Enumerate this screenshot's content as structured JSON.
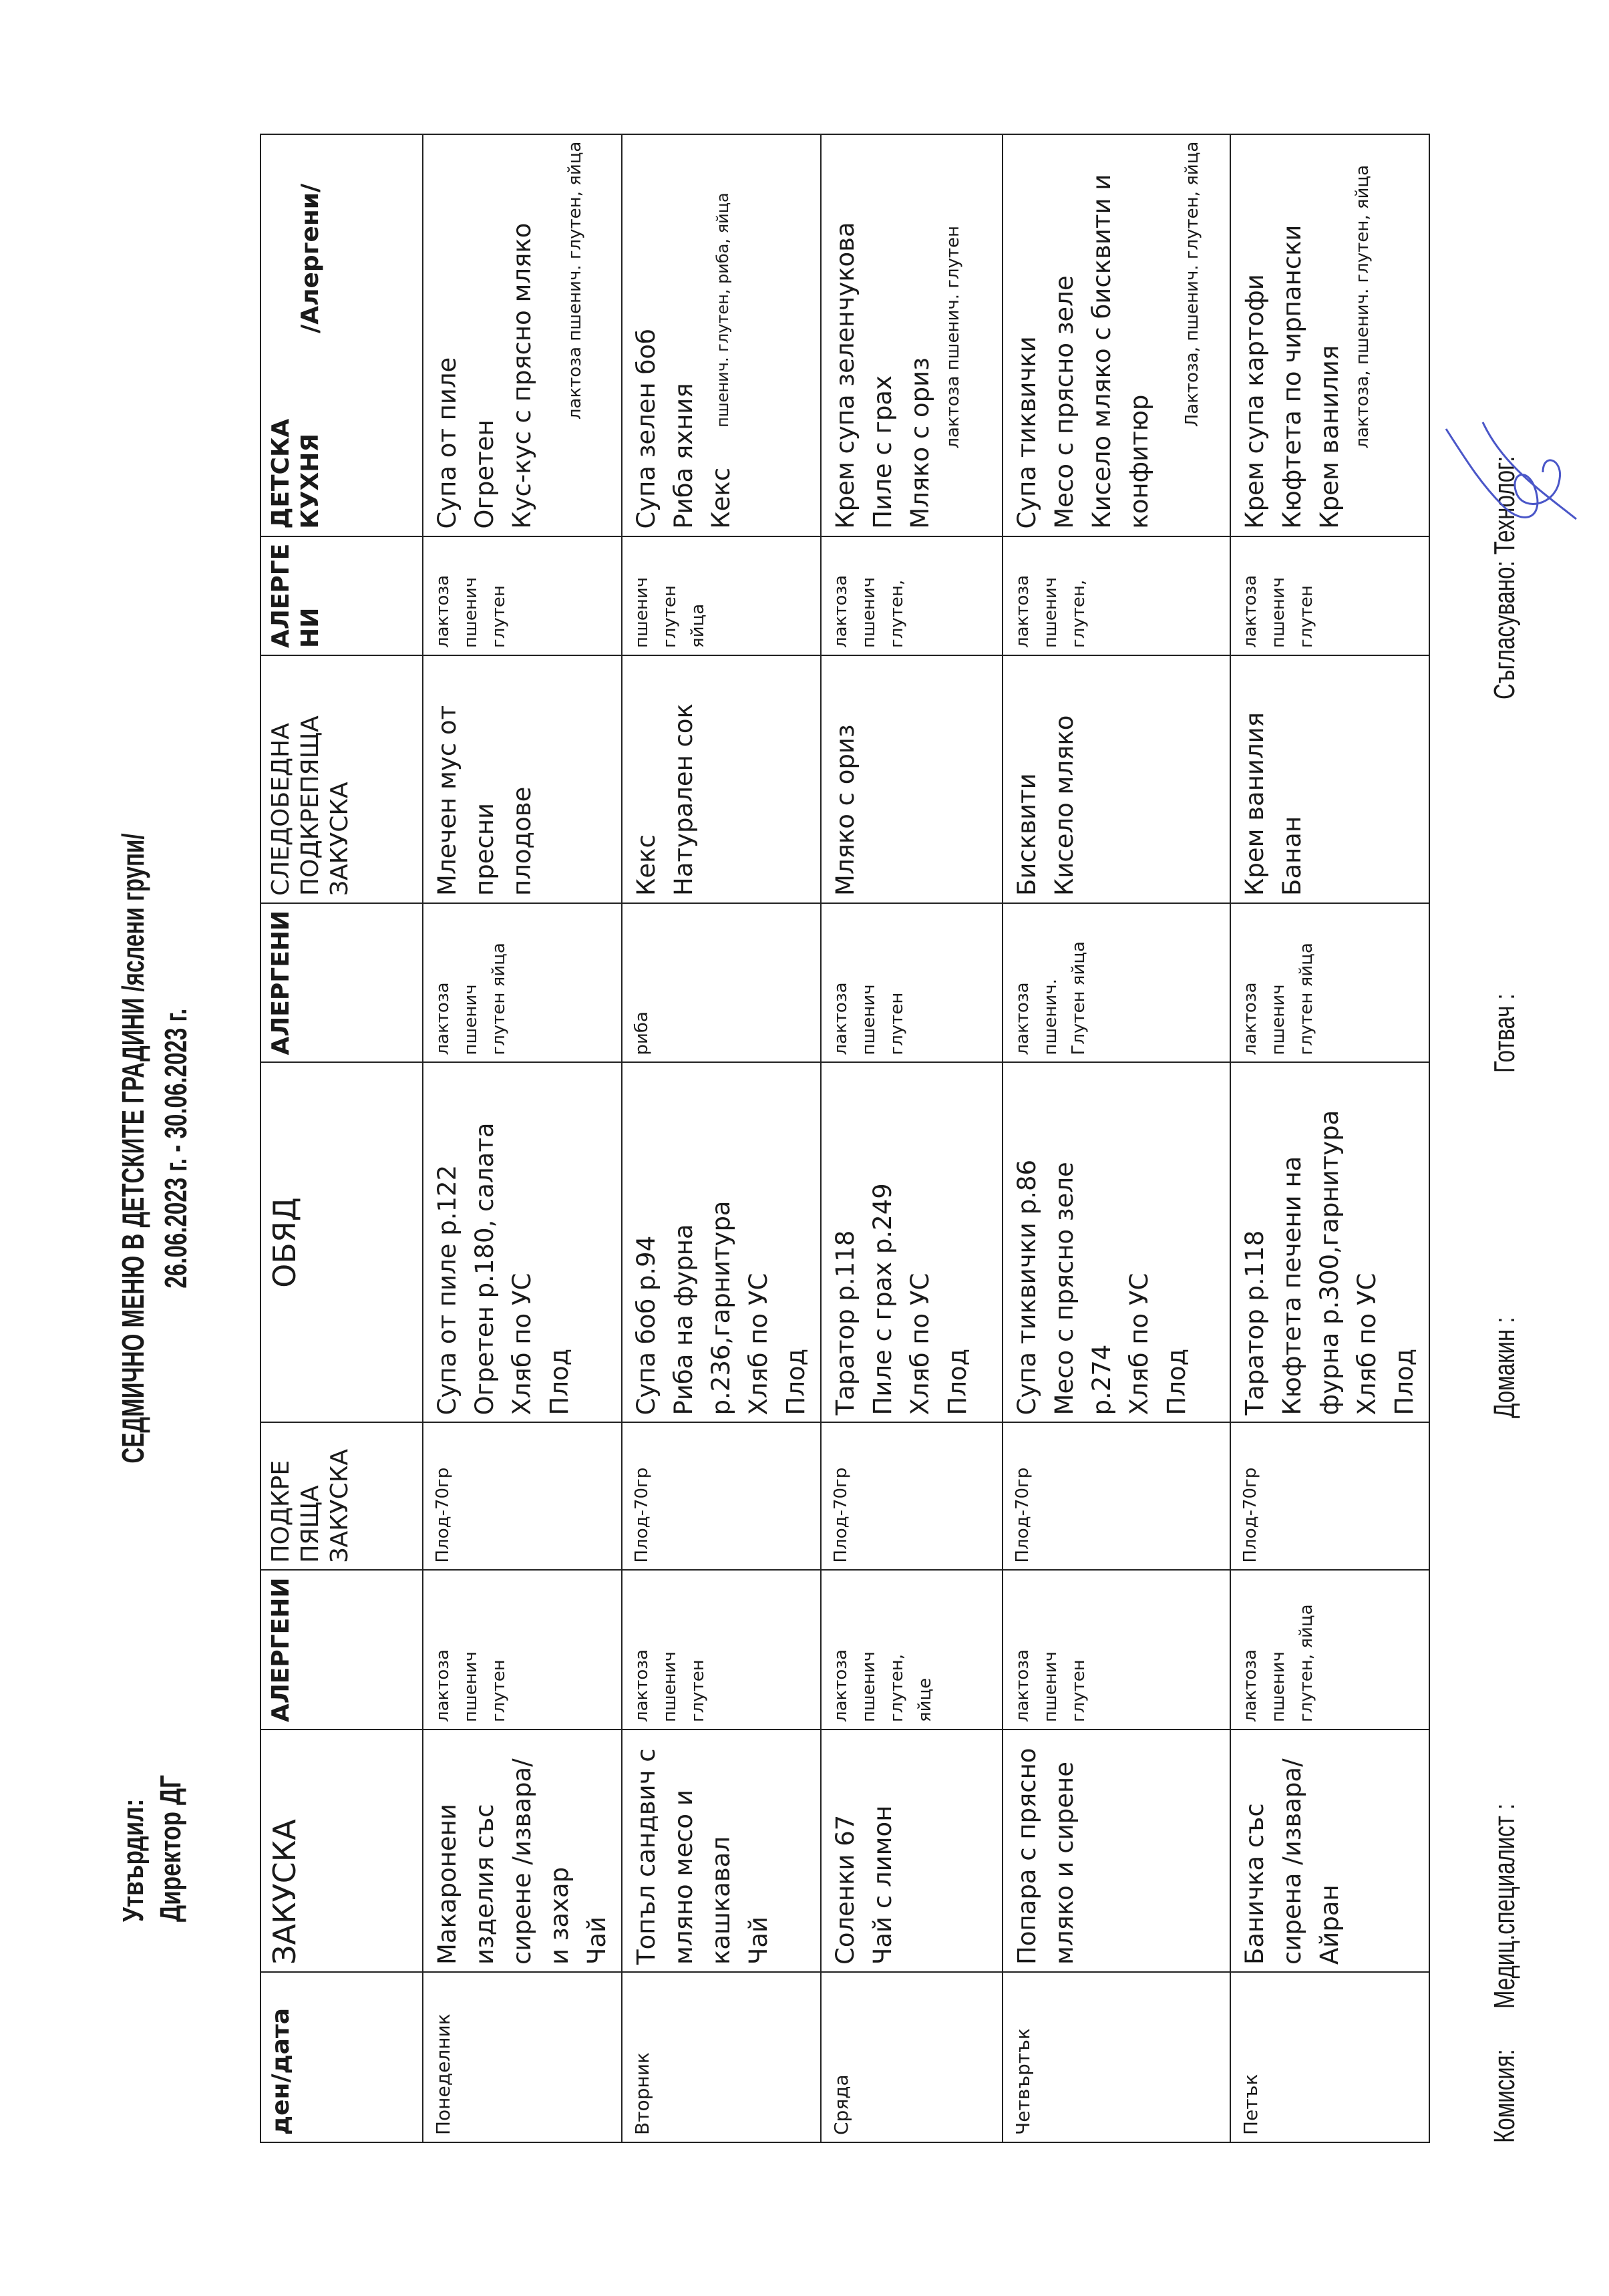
{
  "header": {
    "approved_by": "Утвърдил:",
    "director": "Директор ДГ",
    "title": "СЕДМИЧНО МЕНЮ В ДЕТСКИТЕ ГРАДИНИ /яслени групи/",
    "period": "26.06.2023 г. - 30.06.2023 г."
  },
  "columns": [
    {
      "lines": [
        "ден/дата"
      ]
    },
    {
      "lines": [
        "ЗАКУСКА"
      ]
    },
    {
      "lines": [
        "АЛЕРГЕНИ"
      ]
    },
    {
      "lines": [
        "ПОДКРЕ",
        "ПЯЩА",
        "ЗАКУСКА"
      ]
    },
    {
      "lines": [
        "ОБЯД"
      ]
    },
    {
      "lines": [
        "АЛЕРГЕНИ"
      ]
    },
    {
      "lines": [
        "СЛЕДОБЕДНА",
        "ПОДКРЕПЯЩА",
        "ЗАКУСКА"
      ]
    },
    {
      "lines": [
        "АЛЕРГЕ",
        "НИ"
      ]
    },
    {
      "lines": [
        "ДЕТСКА",
        "КУХНЯ"
      ],
      "suffix": "/Алергени/"
    }
  ],
  "rows": [
    {
      "day": "Понеделник",
      "breakfast": [
        "Макаронени",
        "изделия със",
        "сирене /извара/",
        "и захар",
        "Чай"
      ],
      "breakfast_allergens": [
        "лактоза",
        "пшенич",
        "глутен"
      ],
      "snack": [
        "Плод-70гр"
      ],
      "lunch": [
        "Супа от пиле р.122",
        "Огретен р.180, салата",
        "Хляб по УС",
        "Плод"
      ],
      "lunch_allergens": [
        "лактоза",
        "пшенич",
        "глутен яйца"
      ],
      "afternoon": [
        "Млечен мус от",
        "пресни",
        "плодове"
      ],
      "afternoon_allergens": [
        "лактоза",
        "пшенич",
        "глутен"
      ],
      "kitchen": [
        "Супа от пиле",
        "Огретен",
        "Кус-кус с прясно мляко"
      ],
      "kitchen_allergens": "лактоза пшенич. глутен, яйца",
      "kitchen_allergens_style": "right"
    },
    {
      "day": "Вторник",
      "breakfast": [
        "Топъл сандвич с",
        "мляно месо и",
        "кашкавал",
        "Чай"
      ],
      "breakfast_allergens": [
        "лактоза",
        "пшенич",
        "глутен"
      ],
      "snack": [
        "Плод-70гр"
      ],
      "lunch": [
        "Супа боб р.94",
        "Риба на фурна",
        "р.236,гарнитура",
        "Хляб по УС",
        "Плод"
      ],
      "lunch_allergens": [
        "риба"
      ],
      "afternoon": [
        "Кекс",
        "Натурален сок"
      ],
      "afternoon_allergens": [
        "пшенич",
        "глутен",
        "яйца"
      ],
      "kitchen": [
        "Супа зелен боб",
        "Риба яхния",
        "Кекс"
      ],
      "kitchen_allergens": "пшенич. глутен, риба, яйца",
      "kitchen_allergens_style": "inline"
    },
    {
      "day": "Сряда",
      "breakfast": [
        "Соленки 67",
        "Чай с лимон"
      ],
      "breakfast_allergens": [
        "лактоза",
        "пшенич",
        "глутен,",
        "яйце"
      ],
      "snack": [
        "Плод-70гр"
      ],
      "lunch": [
        "Таратор р.118",
        "Пиле с грах р.249",
        "Хляб по УС",
        "Плод"
      ],
      "lunch_allergens": [
        "лактоза",
        "пшенич",
        "глутен"
      ],
      "afternoon": [
        "Мляко с ориз"
      ],
      "afternoon_allergens": [
        "лактоза",
        "пшенич",
        "глутен,"
      ],
      "kitchen": [
        "Крем супа зеленчукова",
        "Пиле с грах",
        "Мляко с ориз"
      ],
      "kitchen_allergens": "лактоза пшенич. глутен",
      "kitchen_allergens_style": "indent"
    },
    {
      "day": "Четвъртък",
      "breakfast": [
        "Попара с прясно",
        "мляко и сирене"
      ],
      "breakfast_allergens": [
        "лактоза",
        "пшенич",
        "глутен"
      ],
      "snack": [
        "Плод-70гр"
      ],
      "lunch": [
        "Супа тиквички р.86",
        "Месо с прясно зеле",
        "р.274",
        "Хляб по УС",
        "Плод"
      ],
      "lunch_allergens": [
        "лактоза",
        "пшенич.",
        "Глутен яйца"
      ],
      "afternoon": [
        "Бисквити",
        "Кисело мляко"
      ],
      "afternoon_allergens": [
        "лактоза",
        "пшенич",
        "глутен,"
      ],
      "kitchen": [
        "Супа тиквички",
        "Месо с прясно зеле",
        "Кисело мляко с бисквити и",
        "конфитюр"
      ],
      "kitchen_allergens": "Лактоза, пшенич. глутен, яйца",
      "kitchen_allergens_style": "right"
    },
    {
      "day": "Петък",
      "breakfast": [
        "Баничка със",
        "сирена /извара/",
        "Айран"
      ],
      "breakfast_allergens": [
        "лактоза",
        "пшенич",
        "глутен, яйца"
      ],
      "snack": [
        "Плод-70гр"
      ],
      "lunch": [
        "Таратор р.118",
        "Кюфтета печени на",
        "фурна р.300,гарнитура",
        "Хляб по УС",
        "Плод"
      ],
      "lunch_allergens": [
        "лактоза",
        "пшенич",
        "глутен яйца"
      ],
      "afternoon": [
        "Крем ванилия",
        "Банан"
      ],
      "afternoon_allergens": [
        "лактоза",
        "пшенич",
        "глутен"
      ],
      "kitchen": [
        "Крем супа картофи",
        "Кюфтета по чирпански",
        "Крем ванилия"
      ],
      "kitchen_allergens": "лактоза, пшенич. глутен, яйца",
      "kitchen_allergens_style": "indent"
    }
  ],
  "footer": {
    "commission": "Комисия:",
    "medical": "Медиц.специалист :",
    "housekeeper": "Домакин :",
    "cook": "Готвач :",
    "agreed": "Съгласувано: Технолог:"
  },
  "colors": {
    "ink": "#1a1a1a",
    "signature": "#4a56c8"
  }
}
